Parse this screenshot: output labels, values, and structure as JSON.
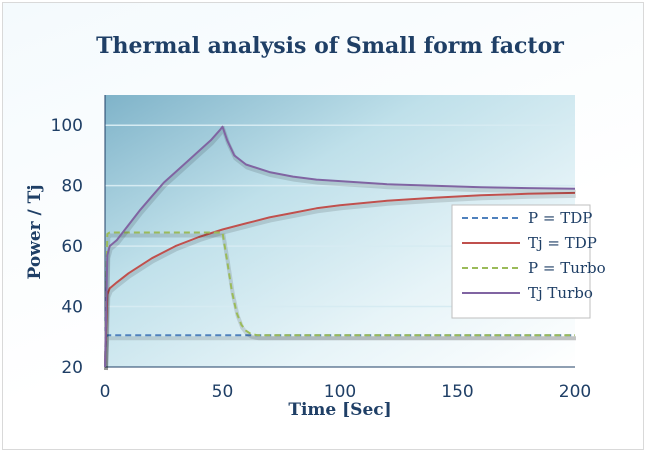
{
  "chart_data": {
    "type": "line",
    "title": "Thermal analysis of Small form factor",
    "xlabel": "Time [Sec]",
    "ylabel": "Power / Tj",
    "xlim": [
      0,
      200
    ],
    "ylim": [
      20,
      110
    ],
    "xticks": [
      0,
      50,
      100,
      150,
      200
    ],
    "yticks": [
      20,
      40,
      60,
      80,
      100
    ],
    "grid": "horizontal",
    "legend_position": "right",
    "series": [
      {
        "name": "P = TDP",
        "style": "dashed",
        "color": "#4f81bd",
        "x": [
          0,
          0.5,
          1,
          2,
          200
        ],
        "y": [
          20,
          30,
          30.5,
          30.5,
          30.5
        ]
      },
      {
        "name": "Tj = TDP",
        "style": "solid",
        "color": "#c0504d",
        "x": [
          0,
          1,
          2,
          5,
          10,
          20,
          30,
          40,
          50,
          60,
          70,
          80,
          90,
          100,
          120,
          140,
          160,
          180,
          200
        ],
        "y": [
          20,
          44,
          46,
          48,
          51,
          56,
          60,
          63,
          65.5,
          67.5,
          69.5,
          71,
          72.5,
          73.5,
          75,
          76,
          76.8,
          77.3,
          77.6
        ]
      },
      {
        "name": "P = Turbo",
        "style": "dashed",
        "color": "#9bbb59",
        "x": [
          0,
          1,
          2,
          49,
          50,
          52,
          54,
          56,
          58,
          60,
          62,
          65,
          70,
          200
        ],
        "y": [
          20,
          64,
          64.5,
          64.5,
          64.5,
          55,
          45,
          38,
          34,
          32,
          31,
          30.5,
          30.5,
          30.5
        ]
      },
      {
        "name": "Tj Turbo",
        "style": "solid",
        "color": "#8064a2",
        "x": [
          0,
          1,
          2,
          5,
          10,
          15,
          20,
          25,
          30,
          35,
          40,
          45,
          49,
          50,
          52,
          55,
          60,
          70,
          80,
          90,
          100,
          120,
          140,
          160,
          180,
          200
        ],
        "y": [
          20,
          57,
          60,
          62,
          67,
          72,
          76.5,
          81,
          84.5,
          88,
          91.5,
          95,
          98.5,
          99.5,
          95,
          90,
          87,
          84.5,
          83,
          82,
          81.5,
          80.5,
          80,
          79.5,
          79.2,
          79
        ]
      }
    ]
  }
}
